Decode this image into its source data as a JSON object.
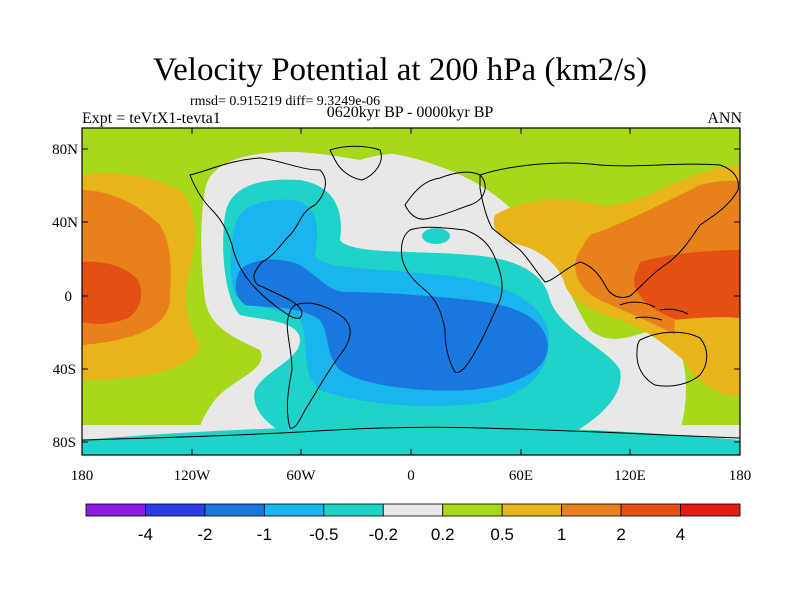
{
  "header": {
    "title": "Velocity Potential at 200 hPa (km2/s)",
    "stats": "rmsd= 0.915219 diff= 9.3249e-06",
    "experiment": "Expt = teVtX1-tevta1",
    "period": "0620kyr BP - 0000kyr BP",
    "season": "ANN"
  },
  "axes": {
    "lat_ticks": [
      "80N",
      "40N",
      "0",
      "40S",
      "80S"
    ],
    "lon_ticks": [
      "180",
      "120W",
      "60W",
      "0",
      "60E",
      "120E",
      "180"
    ]
  },
  "colorbar": {
    "colors": [
      "#8c1ce6",
      "#2c3ce4",
      "#1878de",
      "#1ab4ee",
      "#1ed4c8",
      "#e8e8e8",
      "#a8d81a",
      "#e8b41a",
      "#e8801c",
      "#e45014",
      "#e41a16"
    ],
    "labels": [
      "-4",
      "-2",
      "-1",
      "-0.5",
      "-0.2",
      "0.2",
      "0.5",
      "1",
      "2",
      "4"
    ]
  },
  "map_colors": {
    "land_outline": "#000000",
    "very_neg": "#1878de",
    "neg": "#1ab4ee",
    "weak_neg": "#1ed4c8",
    "neutral": "#e8e8e8",
    "weak_pos": "#a8d81a",
    "pos": "#e8b41a",
    "strong_pos": "#e8801c",
    "very_pos": "#e45014"
  }
}
